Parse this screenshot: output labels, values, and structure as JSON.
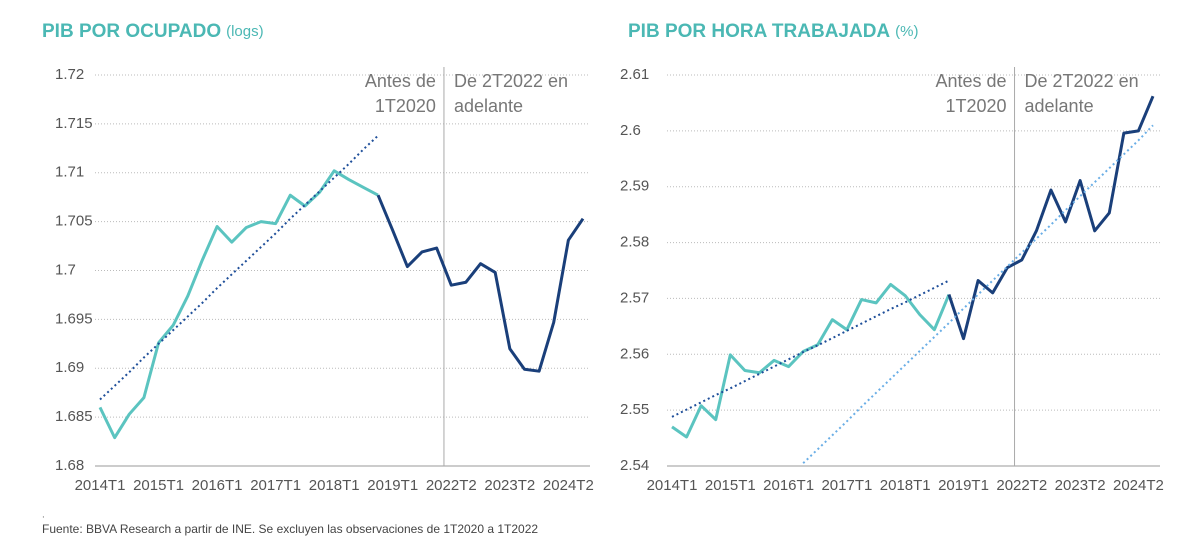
{
  "chart_data": [
    {
      "type": "line",
      "title": "PIB POR OCUPADO",
      "title_unit": "(logs)",
      "categories": [
        "2014T1",
        null,
        null,
        null,
        "2015T1",
        null,
        null,
        null,
        "2016T1",
        null,
        null,
        null,
        "2017T1",
        null,
        null,
        null,
        "2018T1",
        null,
        null,
        null,
        "2019T1",
        null,
        null,
        null,
        "2022T2",
        null,
        null,
        null,
        "2023T2",
        null,
        null,
        null,
        "2024T2",
        null
      ],
      "series": [
        {
          "color": "#5bc4c0",
          "style": "solid",
          "values": [
            1.686,
            1.6829,
            1.6853,
            1.687,
            1.6926,
            1.6944,
            1.6974,
            1.7011,
            1.7045,
            1.7029,
            1.7044,
            1.705,
            1.7048,
            1.7077,
            1.7066,
            1.708,
            1.7102,
            1.7093,
            1.7085,
            1.7077,
            null,
            null,
            null,
            null,
            null,
            null,
            null,
            null,
            null,
            null,
            null,
            null,
            null,
            null
          ]
        },
        {
          "color": "#1a3f7a",
          "style": "solid",
          "values": [
            null,
            null,
            null,
            null,
            null,
            null,
            null,
            null,
            null,
            null,
            null,
            null,
            null,
            null,
            null,
            null,
            null,
            null,
            null,
            1.7077,
            1.7041,
            1.7004,
            1.7019,
            1.7023,
            1.6985,
            1.6988,
            1.7007,
            1.6998,
            1.692,
            1.6899,
            1.6897,
            1.6947,
            1.7031,
            1.7053
          ]
        },
        {
          "color": "#1f4f9a",
          "style": "dotted",
          "values": [
            1.6868,
            1.6882,
            1.6896,
            1.6911,
            1.6925,
            1.6939,
            1.6953,
            1.6967,
            1.6982,
            1.6996,
            1.701,
            1.7024,
            1.7038,
            1.7053,
            1.7067,
            1.7081,
            1.7095,
            1.7109,
            1.7124,
            1.7138,
            null,
            null,
            null,
            null,
            null,
            null,
            null,
            null,
            null,
            null,
            null,
            null,
            null,
            null
          ]
        }
      ],
      "ylim": [
        1.68,
        1.72
      ],
      "yticks": [
        1.68,
        1.685,
        1.69,
        1.695,
        1.7,
        1.705,
        1.71,
        1.715,
        1.72
      ],
      "grid": true,
      "annotations": [
        [
          "Antes de",
          "1T2020"
        ],
        [
          "De 2T2022 en",
          "adelante"
        ]
      ]
    },
    {
      "type": "line",
      "title": "PIB POR HORA TRABAJADA",
      "title_unit": "(%)",
      "categories": [
        "2014T1",
        null,
        null,
        null,
        "2015T1",
        null,
        null,
        null,
        "2016T1",
        null,
        null,
        null,
        "2017T1",
        null,
        null,
        null,
        "2018T1",
        null,
        null,
        null,
        "2019T1",
        null,
        null,
        null,
        "2022T2",
        null,
        null,
        null,
        "2023T2",
        null,
        null,
        null,
        "2024T2",
        null
      ],
      "series": [
        {
          "color": "#5bc4c0",
          "style": "solid",
          "values": [
            2.547,
            2.5452,
            2.5508,
            2.5483,
            2.5599,
            2.5571,
            2.5567,
            2.5589,
            2.5578,
            2.5605,
            2.5617,
            2.5662,
            2.5644,
            2.5698,
            2.5692,
            2.5725,
            2.5705,
            2.5671,
            2.5644,
            2.5707,
            null,
            null,
            null,
            null,
            null,
            null,
            null,
            null,
            null,
            null,
            null,
            null,
            null,
            null
          ]
        },
        {
          "color": "#1a3f7a",
          "style": "solid",
          "values": [
            null,
            null,
            null,
            null,
            null,
            null,
            null,
            null,
            null,
            null,
            null,
            null,
            null,
            null,
            null,
            null,
            null,
            null,
            null,
            2.5707,
            2.5628,
            2.5732,
            2.571,
            2.5755,
            2.5769,
            2.5821,
            2.5894,
            2.5837,
            2.5911,
            2.5821,
            2.5853,
            2.5996,
            2.6,
            2.6062
          ]
        },
        {
          "color": "#1f4f9a",
          "style": "dotted",
          "values": [
            2.5488,
            2.5501,
            2.5514,
            2.5527,
            2.5539,
            2.5552,
            2.5565,
            2.5578,
            2.5591,
            2.5604,
            2.5616,
            2.5629,
            2.5642,
            2.5655,
            2.5668,
            2.5681,
            2.5693,
            2.5706,
            2.5719,
            2.5732,
            null,
            null,
            null,
            null,
            null,
            null,
            null,
            null,
            null,
            null,
            null,
            null,
            null,
            null
          ]
        },
        {
          "color": "#6aaee6",
          "style": "dotted",
          "values": [
            null,
            null,
            null,
            null,
            null,
            null,
            null,
            null,
            null,
            2.5405,
            2.543,
            2.5455,
            2.548,
            2.5506,
            2.5531,
            2.5556,
            2.5581,
            2.5606,
            2.5631,
            2.5656,
            2.5682,
            2.5707,
            2.5732,
            2.5757,
            2.5782,
            2.5807,
            2.5832,
            2.5858,
            2.5883,
            2.5908,
            2.5933,
            2.5958,
            2.5983,
            2.601
          ]
        }
      ],
      "ylim": [
        2.54,
        2.61
      ],
      "yticks": [
        2.54,
        2.55,
        2.56,
        2.57,
        2.58,
        2.59,
        2.6,
        2.61
      ],
      "grid": true,
      "annotations": [
        [
          "Antes de",
          "1T2020"
        ],
        [
          "De 2T2022 en",
          "adelante"
        ]
      ]
    }
  ],
  "footer": "Fuente: BBVA Research a partir de INE. Se excluyen las observaciones de 1T2020 a 1T2022"
}
